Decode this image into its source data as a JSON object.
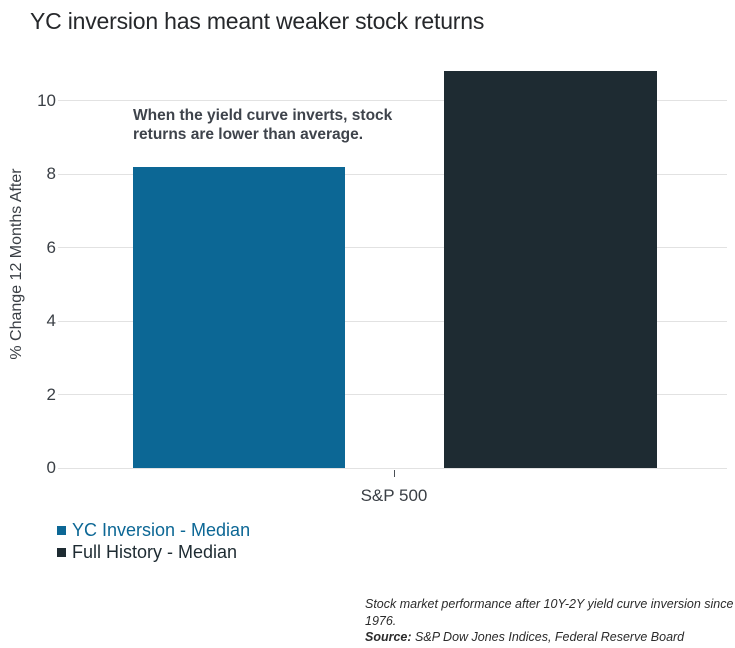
{
  "title": "YC inversion has meant weaker stock returns",
  "chart_data": {
    "type": "bar",
    "categories": [
      "S&P 500"
    ],
    "series": [
      {
        "name": "YC Inversion - Median",
        "values": [
          8.2
        ],
        "color": "#0c6795"
      },
      {
        "name": "Full History - Median",
        "values": [
          10.8
        ],
        "color": "#1e2b32"
      }
    ],
    "title": "YC inversion has meant weaker stock returns",
    "xlabel": "S&P 500",
    "ylabel": "% Change 12 Months After",
    "ylim": [
      0,
      11
    ],
    "yticks": [
      0,
      2,
      4,
      6,
      8,
      10
    ],
    "grid": "horizontal-only",
    "legend_position": "bottom-left",
    "annotation": "When the yield curve inverts, stock returns are lower than average."
  },
  "annotation": {
    "line1": "When the yield curve inverts, stock",
    "line2": "returns are lower than average."
  },
  "footer": {
    "note": "Stock market performance after 10Y-2Y yield curve inversion since 1976.",
    "source_label": "Source:",
    "source_text": " S&P Dow Jones Indices, Federal Reserve Board"
  },
  "colors": {
    "gridline": "#e2e2e2",
    "axis_text": "#3a3f45",
    "title_text": "#26282b",
    "annotation_text": "#3e434b"
  }
}
